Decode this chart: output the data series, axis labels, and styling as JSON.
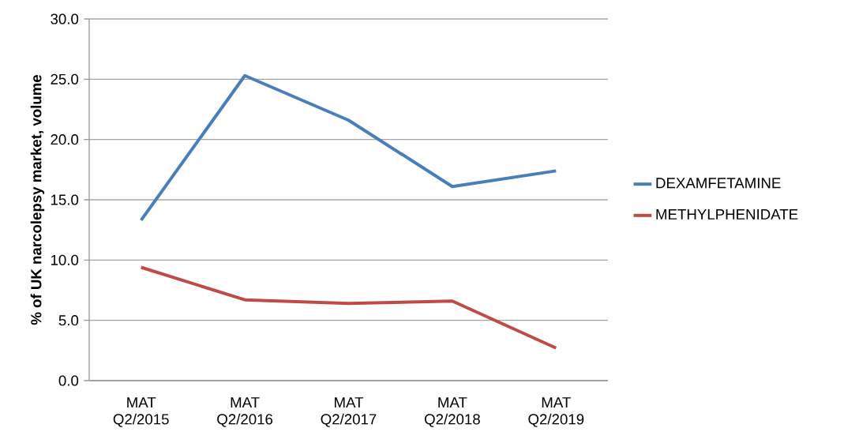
{
  "chart_data": {
    "type": "line",
    "ylabel": "% of UK narcolepsy market, volume",
    "categories": [
      "MAT Q2/2015",
      "MAT Q2/2016",
      "MAT Q2/2017",
      "MAT Q2/2018",
      "MAT Q2/2019"
    ],
    "series": [
      {
        "name": "DEXAMFETAMINE",
        "color": "#4a7ebb",
        "values": [
          13.3,
          25.3,
          21.6,
          16.1,
          17.4
        ]
      },
      {
        "name": "METHYLPHENIDATE",
        "color": "#be4b48",
        "values": [
          9.4,
          6.7,
          6.4,
          6.6,
          2.7
        ]
      }
    ],
    "ylim": [
      0,
      30
    ],
    "yticks": [
      {
        "value": 0,
        "label": "0.0"
      },
      {
        "value": 5,
        "label": "5.0"
      },
      {
        "value": 10,
        "label": "10.0"
      },
      {
        "value": 15,
        "label": "15.0"
      },
      {
        "value": 20,
        "label": "20.0"
      },
      {
        "value": 25,
        "label": "25.0"
      },
      {
        "value": 30,
        "label": "30.0"
      }
    ],
    "grid": "y",
    "legend": "right",
    "marker": "none",
    "line_style": "solid"
  }
}
